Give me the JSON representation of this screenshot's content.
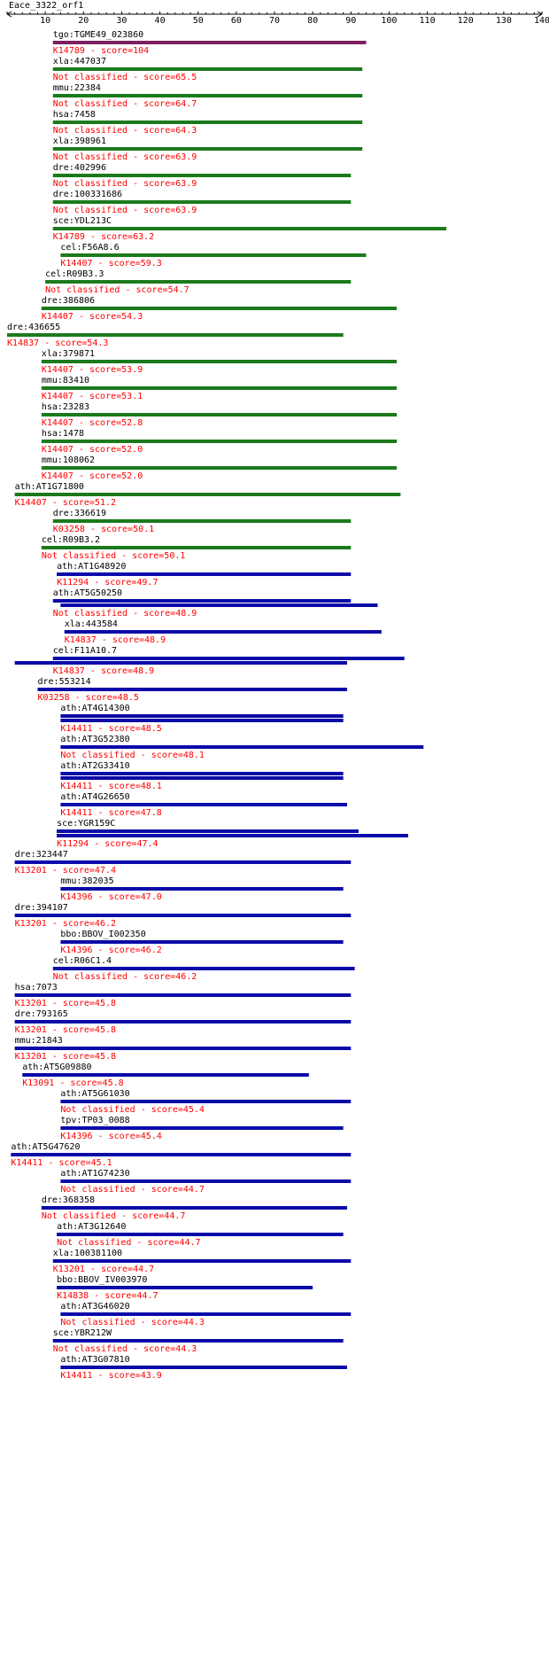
{
  "query_label": "Eace_3322_orf1",
  "axis": {
    "min": 0,
    "max": 140,
    "ticks": [
      10,
      20,
      30,
      40,
      50,
      60,
      70,
      80,
      90,
      100,
      110,
      120,
      130,
      140
    ]
  },
  "colors": {
    "purple": "#7b1f5e",
    "green": "#1b7a1b",
    "blue": "#0a0aa8",
    "label_black": "#000000",
    "label_red": "#ff0000"
  },
  "hits": [
    {
      "name": "tgo:TGME49_023860",
      "ko": "K14789 - score=104",
      "bars": [
        [
          12,
          94
        ]
      ],
      "color": "purple"
    },
    {
      "name": "xla:447037",
      "ko": "Not classified - score=65.5",
      "bars": [
        [
          12,
          93
        ]
      ],
      "color": "green"
    },
    {
      "name": "mmu:22384",
      "ko": "Not classified - score=64.7",
      "bars": [
        [
          12,
          93
        ]
      ],
      "color": "green"
    },
    {
      "name": "hsa:7458",
      "ko": "Not classified - score=64.3",
      "bars": [
        [
          12,
          93
        ]
      ],
      "color": "green"
    },
    {
      "name": "xla:398961",
      "ko": "Not classified - score=63.9",
      "bars": [
        [
          12,
          93
        ]
      ],
      "color": "green"
    },
    {
      "name": "dre:402996",
      "ko": "Not classified - score=63.9",
      "bars": [
        [
          12,
          90
        ]
      ],
      "color": "green"
    },
    {
      "name": "dre:100331686",
      "ko": "Not classified - score=63.9",
      "bars": [
        [
          12,
          90
        ]
      ],
      "color": "green"
    },
    {
      "name": "sce:YDL213C",
      "ko": "K14789 - score=63.2",
      "bars": [
        [
          12,
          115
        ]
      ],
      "color": "green"
    },
    {
      "name": "cel:F56A8.6",
      "ko": "K14407 - score=59.3",
      "bars": [
        [
          14,
          94
        ]
      ],
      "color": "green"
    },
    {
      "name": "cel:R09B3.3",
      "ko": "Not classified - score=54.7",
      "bars": [
        [
          10,
          90
        ]
      ],
      "color": "green"
    },
    {
      "name": "dre:386806",
      "ko": "K14407 - score=54.3",
      "bars": [
        [
          9,
          102
        ]
      ],
      "color": "green"
    },
    {
      "name": "dre:436655",
      "ko": "K14837 - score=54.3",
      "bars": [
        [
          0,
          88
        ]
      ],
      "color": "green"
    },
    {
      "name": "xla:379871",
      "ko": "K14407 - score=53.9",
      "bars": [
        [
          9,
          102
        ]
      ],
      "color": "green"
    },
    {
      "name": "mmu:83410",
      "ko": "K14407 - score=53.1",
      "bars": [
        [
          9,
          102
        ]
      ],
      "color": "green"
    },
    {
      "name": "hsa:23283",
      "ko": "K14407 - score=52.8",
      "bars": [
        [
          9,
          102
        ]
      ],
      "color": "green"
    },
    {
      "name": "hsa:1478",
      "ko": "K14407 - score=52.0",
      "bars": [
        [
          9,
          102
        ]
      ],
      "color": "green"
    },
    {
      "name": "mmu:108062",
      "ko": "K14407 - score=52.0",
      "bars": [
        [
          9,
          102
        ]
      ],
      "color": "green"
    },
    {
      "name": "ath:AT1G71800",
      "ko": "K14407 - score=51.2",
      "bars": [
        [
          2,
          103
        ]
      ],
      "color": "green"
    },
    {
      "name": "dre:336619",
      "ko": "K03258 - score=50.1",
      "bars": [
        [
          12,
          90
        ]
      ],
      "color": "green"
    },
    {
      "name": "cel:R09B3.2",
      "ko": "Not classified - score=50.1",
      "bars": [
        [
          9,
          90
        ]
      ],
      "color": "green"
    },
    {
      "name": "ath:AT1G48920",
      "ko": "K11294 - score=49.7",
      "bars": [
        [
          13,
          90
        ]
      ],
      "color": "blue"
    },
    {
      "name": "ath:AT5G50250",
      "ko": "Not classified - score=48.9",
      "bars": [
        [
          12,
          90
        ],
        [
          14,
          97
        ]
      ],
      "color": "blue"
    },
    {
      "name": "xla:443584",
      "ko": "K14837 - score=48.9",
      "bars": [
        [
          15,
          98
        ]
      ],
      "color": "blue"
    },
    {
      "name": "cel:F11A10.7",
      "ko": "K14837 - score=48.9",
      "bars": [
        [
          12,
          104
        ],
        [
          2,
          89
        ]
      ],
      "color": "blue"
    },
    {
      "name": "dre:553214",
      "ko": "K03258 - score=48.5",
      "bars": [
        [
          8,
          89
        ]
      ],
      "color": "blue"
    },
    {
      "name": "ath:AT4G14300",
      "ko": "K14411 - score=48.5",
      "bars": [
        [
          14,
          88
        ],
        [
          14,
          88
        ]
      ],
      "color": "blue"
    },
    {
      "name": "ath:AT3G52380",
      "ko": "Not classified - score=48.1",
      "bars": [
        [
          14,
          109
        ]
      ],
      "color": "blue"
    },
    {
      "name": "ath:AT2G33410",
      "ko": "K14411 - score=48.1",
      "bars": [
        [
          14,
          88
        ],
        [
          14,
          88
        ]
      ],
      "color": "blue"
    },
    {
      "name": "ath:AT4G26650",
      "ko": "K14411 - score=47.8",
      "bars": [
        [
          14,
          89
        ]
      ],
      "color": "blue"
    },
    {
      "name": "sce:YGR159C",
      "ko": "K11294 - score=47.4",
      "bars": [
        [
          13,
          92
        ],
        [
          13,
          105
        ]
      ],
      "color": "blue"
    },
    {
      "name": "dre:323447",
      "ko": "K13201 - score=47.4",
      "bars": [
        [
          2,
          90
        ]
      ],
      "color": "blue"
    },
    {
      "name": "mmu:382035",
      "ko": "K14396 - score=47.0",
      "bars": [
        [
          14,
          88
        ]
      ],
      "color": "blue"
    },
    {
      "name": "dre:394107",
      "ko": "K13201 - score=46.2",
      "bars": [
        [
          2,
          90
        ]
      ],
      "color": "blue"
    },
    {
      "name": "bbo:BBOV_I002350",
      "ko": "K14396 - score=46.2",
      "bars": [
        [
          14,
          88
        ]
      ],
      "color": "blue"
    },
    {
      "name": "cel:R06C1.4",
      "ko": "Not classified - score=46.2",
      "bars": [
        [
          12,
          91
        ]
      ],
      "color": "blue"
    },
    {
      "name": "hsa:7073",
      "ko": "K13201 - score=45.8",
      "bars": [
        [
          2,
          90
        ]
      ],
      "color": "blue"
    },
    {
      "name": "dre:793165",
      "ko": "K13201 - score=45.8",
      "bars": [
        [
          2,
          90
        ]
      ],
      "color": "blue"
    },
    {
      "name": "mmu:21843",
      "ko": "K13201 - score=45.8",
      "bars": [
        [
          2,
          90
        ]
      ],
      "color": "blue"
    },
    {
      "name": "ath:AT5G09880",
      "ko": "K13091 - score=45.8",
      "bars": [
        [
          4,
          79
        ]
      ],
      "color": "blue"
    },
    {
      "name": "ath:AT5G61030",
      "ko": "Not classified - score=45.4",
      "bars": [
        [
          14,
          90
        ]
      ],
      "color": "blue"
    },
    {
      "name": "tpv:TP03_0088",
      "ko": "K14396 - score=45.4",
      "bars": [
        [
          14,
          88
        ]
      ],
      "color": "blue"
    },
    {
      "name": "ath:AT5G47620",
      "ko": "K14411 - score=45.1",
      "bars": [
        [
          1,
          90
        ]
      ],
      "color": "blue"
    },
    {
      "name": "ath:AT1G74230",
      "ko": "Not classified - score=44.7",
      "bars": [
        [
          14,
          90
        ]
      ],
      "color": "blue"
    },
    {
      "name": "dre:368358",
      "ko": "Not classified - score=44.7",
      "bars": [
        [
          9,
          89
        ]
      ],
      "color": "blue"
    },
    {
      "name": "ath:AT3G12640",
      "ko": "Not classified - score=44.7",
      "bars": [
        [
          13,
          88
        ]
      ],
      "color": "blue"
    },
    {
      "name": "xla:100381100",
      "ko": "K13201 - score=44.7",
      "bars": [
        [
          12,
          90
        ]
      ],
      "color": "blue"
    },
    {
      "name": "bbo:BBOV_IV003970",
      "ko": "K14838 - score=44.7",
      "bars": [
        [
          13,
          80
        ]
      ],
      "color": "blue"
    },
    {
      "name": "ath:AT3G46020",
      "ko": "Not classified - score=44.3",
      "bars": [
        [
          14,
          90
        ]
      ],
      "color": "blue"
    },
    {
      "name": "sce:YBR212W",
      "ko": "Not classified - score=44.3",
      "bars": [
        [
          12,
          88
        ]
      ],
      "color": "blue"
    },
    {
      "name": "ath:AT3G07810",
      "ko": "K14411 - score=43.9",
      "bars": [
        [
          14,
          89
        ]
      ],
      "color": "blue"
    }
  ]
}
